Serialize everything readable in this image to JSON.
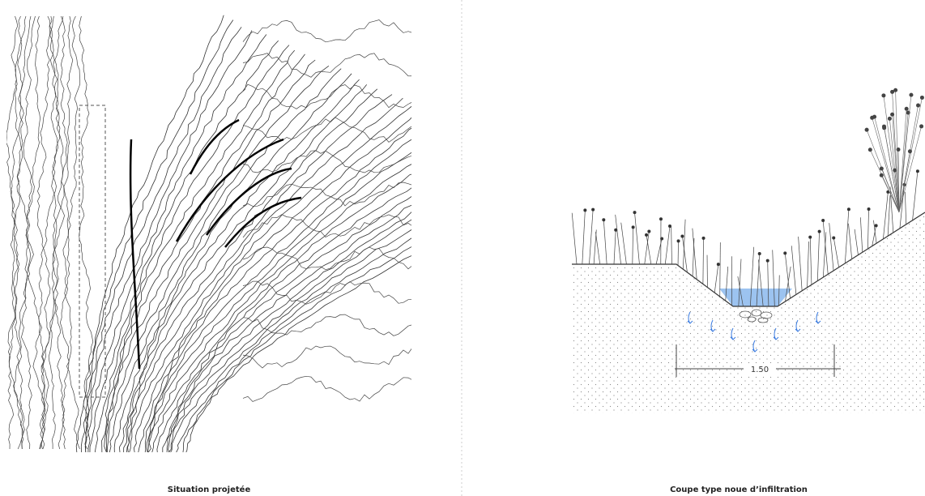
{
  "panels": [
    {
      "caption": "Situation projetée"
    },
    {
      "caption": "Coupe type noue d’infiltration",
      "dimension": "1.50"
    }
  ]
}
